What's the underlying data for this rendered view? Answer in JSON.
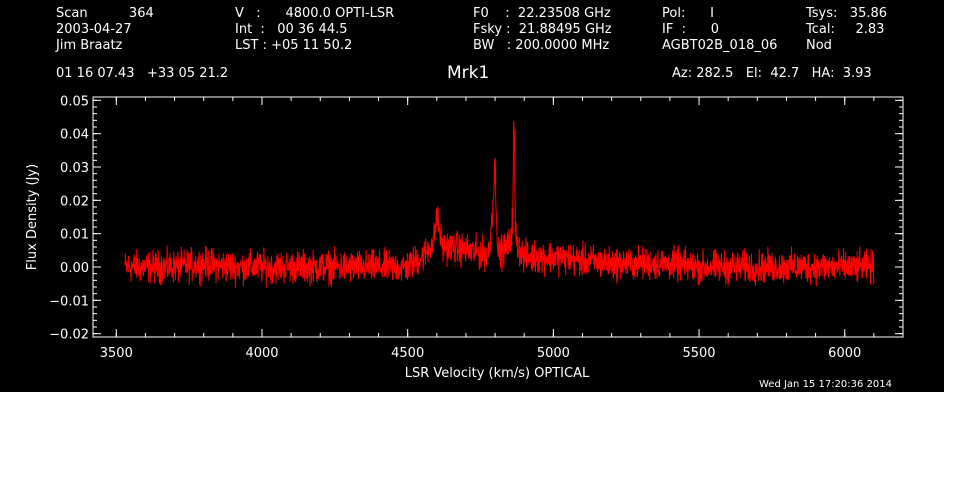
{
  "header": {
    "col1": [
      "Scan          364",
      "2003-04-27",
      "Jim Braatz"
    ],
    "col2": [
      "V   :      4800.0 OPTI-LSR",
      "Int  :   00 36 44.5",
      "LST : +05 11 50.2"
    ],
    "col3": [
      "F0    :  22.23508 GHz",
      "Fsky :  21.88495 GHz",
      "BW   : 200.0000 MHz"
    ],
    "col4": [
      "Pol:      I",
      "IF  :      0",
      "AGBT02B_018_06"
    ],
    "col5": [
      "Tsys:   35.86",
      "Tcal:     2.83",
      "Nod"
    ],
    "coords": "01 16 07.43   +33 05 21.2",
    "source": "Mrk1",
    "azelha": "Az: 282.5   El:  42.7   HA:  3.93",
    "timestamp": "Wed Jan 15 17:20:36 2014"
  },
  "chart_data": {
    "type": "line",
    "title": "Mrk1",
    "xlabel": "LSR Velocity (km/s) OPTICAL",
    "ylabel": "Flux Density (Jy)",
    "xlim": [
      3420,
      6200
    ],
    "ylim": [
      -0.021,
      0.051
    ],
    "x_ticks": [
      "3500",
      "4000",
      "4500",
      "5000",
      "5500",
      "6000"
    ],
    "y_ticks": [
      "−0.02",
      "−0.01",
      "0.00",
      "0.01",
      "0.02",
      "0.03",
      "0.04",
      "0.05"
    ],
    "grid": false,
    "series": [
      {
        "color": "#ff0000",
        "x": [
          3530,
          3600,
          3700,
          3800,
          3900,
          4000,
          4100,
          4200,
          4300,
          4400,
          4500,
          4560,
          4590,
          4600,
          4620,
          4650,
          4700,
          4750,
          4780,
          4800,
          4810,
          4830,
          4850,
          4860,
          4865,
          4870,
          4880,
          4900,
          4950,
          5000,
          5100,
          5200,
          5300,
          5400,
          5500,
          5600,
          5700,
          5800,
          5900,
          6000,
          6100
        ],
        "values": [
          0.0,
          0.0,
          0.0,
          0.001,
          0.0,
          0.0,
          0.0,
          0.0,
          0.0,
          0.0,
          0.0,
          0.004,
          0.008,
          0.015,
          0.006,
          0.006,
          0.005,
          0.004,
          0.004,
          0.029,
          0.004,
          0.005,
          0.007,
          0.014,
          0.04,
          0.01,
          0.006,
          0.003,
          0.003,
          0.003,
          0.002,
          0.001,
          0.001,
          0.001,
          0.0,
          0.0,
          0.0,
          0.0,
          0.0,
          0.0,
          0.0
        ],
        "noise": 0.003
      }
    ]
  }
}
